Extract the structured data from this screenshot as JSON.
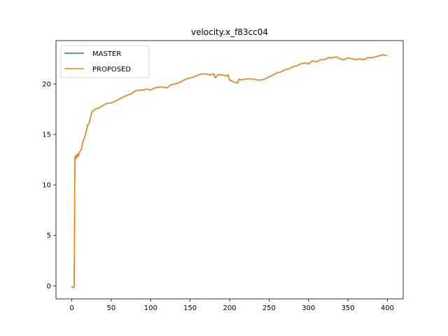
{
  "chart_data": {
    "type": "line",
    "title": "velocity.x_f83cc04",
    "xlabel": "",
    "ylabel": "",
    "xlim": [
      -20,
      420
    ],
    "ylim": [
      -1.3,
      24.3
    ],
    "xticks": [
      0,
      50,
      100,
      150,
      200,
      250,
      300,
      350,
      400
    ],
    "yticks": [
      0,
      5,
      10,
      15,
      20
    ],
    "grid": false,
    "legend_position": "top-left",
    "series": [
      {
        "name": "MASTER",
        "color": "#1f77b4",
        "x": [
          0,
          1,
          2,
          3,
          4,
          5,
          6,
          7,
          8,
          9,
          10,
          12,
          14,
          16,
          18,
          20,
          22,
          24,
          26,
          28,
          30,
          32,
          34,
          36,
          38,
          40,
          45,
          50,
          55,
          60,
          65,
          70,
          75,
          80,
          85,
          90,
          95,
          100,
          105,
          110,
          115,
          120,
          125,
          130,
          135,
          140,
          145,
          150,
          155,
          160,
          165,
          170,
          175,
          180,
          182,
          185,
          190,
          195,
          198,
          200,
          205,
          210,
          212,
          215,
          220,
          225,
          230,
          235,
          240,
          245,
          250,
          255,
          260,
          265,
          270,
          275,
          280,
          285,
          290,
          295,
          300,
          305,
          310,
          315,
          320,
          325,
          330,
          335,
          340,
          345,
          350,
          355,
          360,
          365,
          370,
          375,
          380,
          385,
          390,
          395,
          399
        ],
        "y": [
          -0.1,
          -0.1,
          -0.2,
          -0.1,
          12.7,
          12.9,
          12.6,
          13.1,
          12.8,
          13.0,
          13.3,
          13.5,
          14.3,
          14.6,
          15.2,
          15.9,
          16.1,
          16.8,
          17.3,
          17.4,
          17.5,
          17.6,
          17.6,
          17.7,
          17.8,
          17.9,
          18.1,
          18.1,
          18.3,
          18.5,
          18.7,
          18.9,
          19.0,
          19.3,
          19.4,
          19.4,
          19.5,
          19.4,
          19.6,
          19.7,
          19.7,
          19.6,
          19.9,
          20.0,
          20.1,
          20.3,
          20.5,
          20.6,
          20.7,
          20.9,
          21.0,
          21.0,
          20.9,
          21.0,
          20.6,
          20.9,
          20.9,
          20.8,
          20.9,
          20.4,
          20.2,
          20.1,
          20.5,
          20.4,
          20.5,
          20.5,
          20.5,
          20.4,
          20.4,
          20.5,
          20.7,
          20.9,
          21.1,
          21.2,
          21.4,
          21.5,
          21.7,
          21.8,
          22.0,
          22.1,
          22.0,
          22.3,
          22.2,
          22.4,
          22.4,
          22.6,
          22.6,
          22.7,
          22.5,
          22.4,
          22.6,
          22.5,
          22.4,
          22.5,
          22.4,
          22.6,
          22.6,
          22.7,
          22.8,
          22.9,
          22.8
        ]
      },
      {
        "name": "PROPOSED",
        "color": "#ff7f0e",
        "x": [
          0,
          1,
          2,
          3,
          4,
          5,
          6,
          7,
          8,
          9,
          10,
          12,
          14,
          16,
          18,
          20,
          22,
          24,
          26,
          28,
          30,
          32,
          34,
          36,
          38,
          40,
          45,
          50,
          55,
          60,
          65,
          70,
          75,
          80,
          85,
          90,
          95,
          100,
          105,
          110,
          115,
          120,
          125,
          130,
          135,
          140,
          145,
          150,
          155,
          160,
          165,
          170,
          175,
          180,
          182,
          185,
          190,
          195,
          198,
          200,
          205,
          210,
          212,
          215,
          220,
          225,
          230,
          235,
          240,
          245,
          250,
          255,
          260,
          265,
          270,
          275,
          280,
          285,
          290,
          295,
          300,
          305,
          310,
          315,
          320,
          325,
          330,
          335,
          340,
          345,
          350,
          355,
          360,
          365,
          370,
          375,
          380,
          385,
          390,
          395,
          399
        ],
        "y": [
          -0.1,
          -0.1,
          -0.2,
          -0.1,
          12.7,
          12.9,
          12.6,
          13.1,
          12.8,
          13.0,
          13.3,
          13.5,
          14.3,
          14.6,
          15.2,
          15.9,
          16.1,
          16.8,
          17.3,
          17.4,
          17.5,
          17.6,
          17.6,
          17.7,
          17.8,
          17.9,
          18.1,
          18.1,
          18.3,
          18.5,
          18.7,
          18.9,
          19.0,
          19.3,
          19.4,
          19.4,
          19.5,
          19.4,
          19.6,
          19.7,
          19.7,
          19.6,
          19.9,
          20.0,
          20.1,
          20.3,
          20.5,
          20.6,
          20.7,
          20.9,
          21.0,
          21.0,
          20.9,
          21.0,
          20.6,
          20.9,
          20.9,
          20.8,
          20.9,
          20.4,
          20.2,
          20.1,
          20.5,
          20.4,
          20.5,
          20.5,
          20.5,
          20.4,
          20.4,
          20.5,
          20.7,
          20.9,
          21.1,
          21.2,
          21.4,
          21.5,
          21.7,
          21.8,
          22.0,
          22.1,
          22.0,
          22.3,
          22.2,
          22.4,
          22.4,
          22.6,
          22.6,
          22.7,
          22.5,
          22.4,
          22.6,
          22.5,
          22.4,
          22.5,
          22.4,
          22.6,
          22.6,
          22.7,
          22.8,
          22.9,
          22.8
        ]
      }
    ]
  }
}
